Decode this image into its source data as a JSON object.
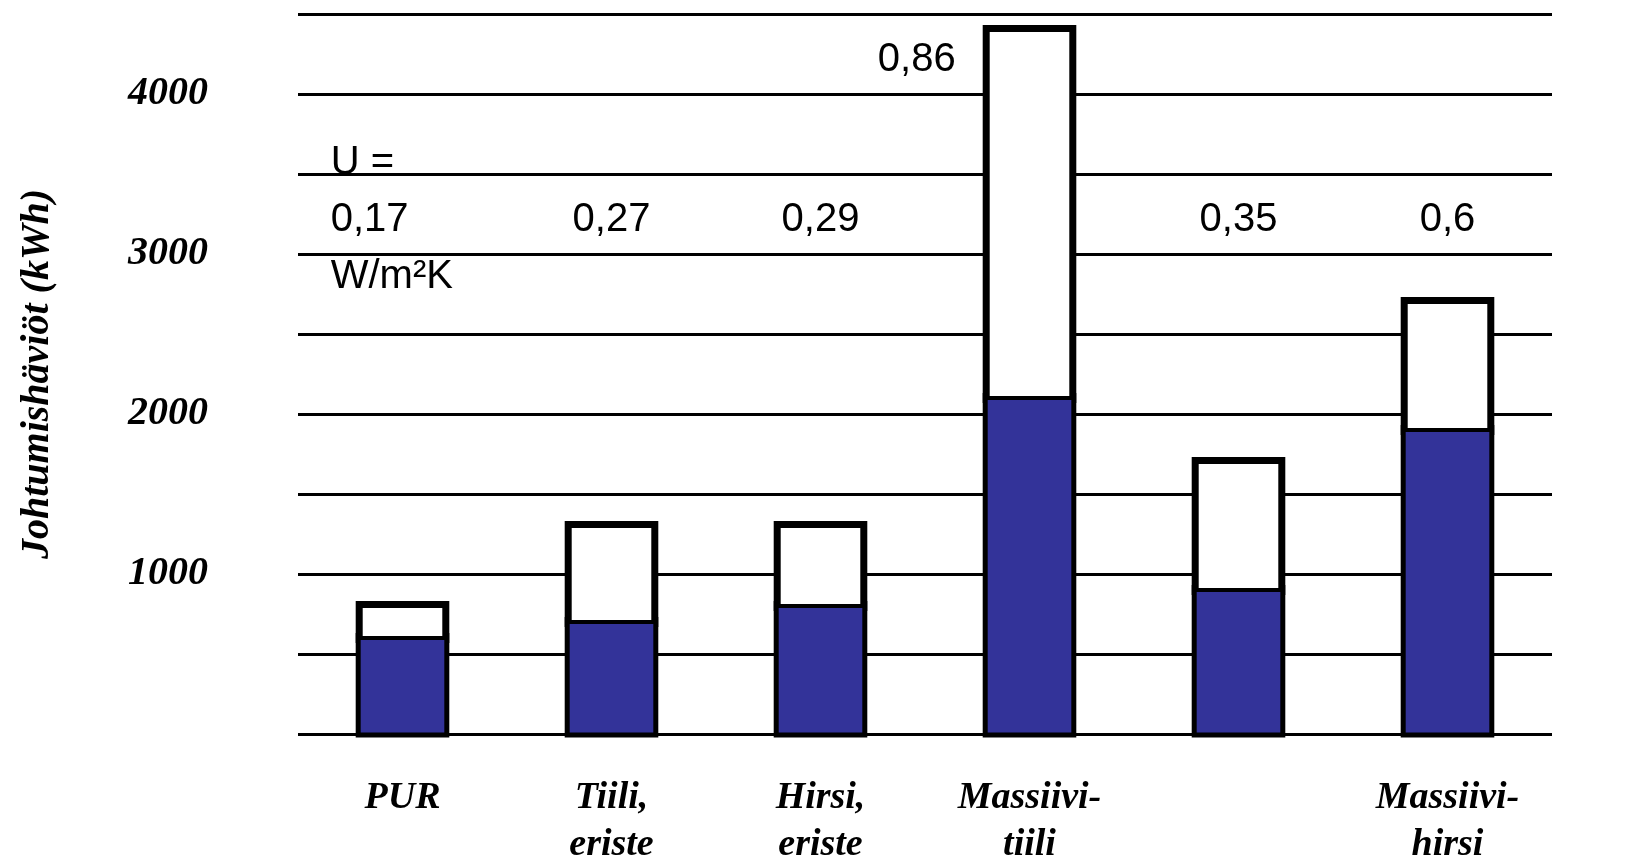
{
  "chart_data": {
    "type": "bar",
    "stacked": true,
    "ylabel": "Johtumishäviöt (kWh)",
    "categories": [
      "PUR",
      "Tiili,\neriste",
      "Hirsi,\neriste",
      "Massiivi-\ntiili",
      null,
      "Massiivi-\nhirsi"
    ],
    "series": [
      {
        "color": "#333399",
        "values": [
          600,
          700,
          800,
          2100,
          900,
          1900
        ]
      },
      {
        "color": "#ffffff",
        "values": [
          200,
          600,
          500,
          2300,
          800,
          800
        ]
      }
    ],
    "ylim": [
      0,
      4500
    ],
    "yticks": [
      {
        "value": 0,
        "label": null
      },
      {
        "value": 500,
        "label": null
      },
      1000,
      {
        "value": 1500,
        "label": null
      },
      2000,
      {
        "value": 2500,
        "label": null
      },
      3000,
      {
        "value": 3500,
        "label": null
      },
      4000,
      {
        "value": 4500,
        "label": null
      }
    ],
    "grid": "y",
    "legend": false,
    "annotations": [
      "U =\n0,17\nW/m²K",
      "0,27",
      "0,29",
      "0,86",
      "0,35",
      "0,6"
    ]
  }
}
